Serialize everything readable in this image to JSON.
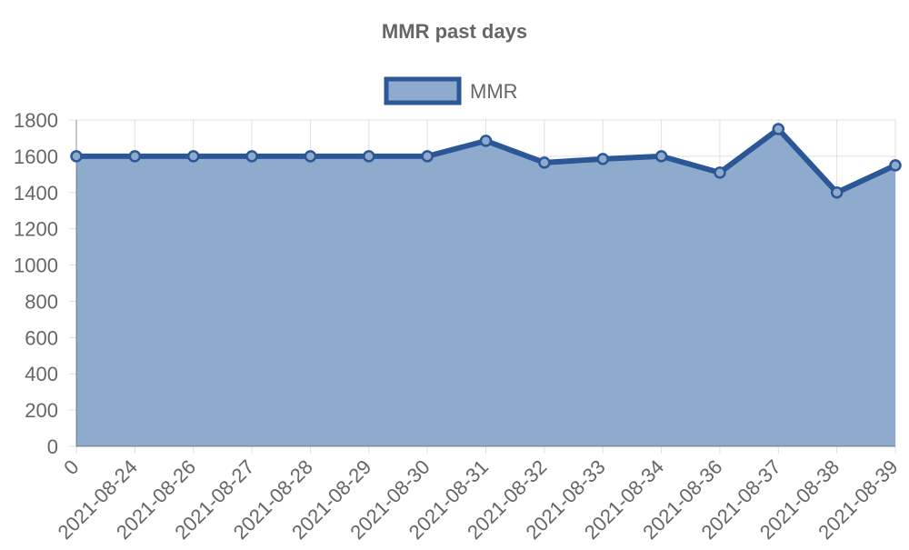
{
  "chart_data": {
    "type": "area",
    "title": "MMR past days",
    "legend": {
      "position": "top",
      "entries": [
        "MMR"
      ]
    },
    "categories": [
      "0",
      "2021-08-24",
      "2021-08-26",
      "2021-08-27",
      "2021-08-28",
      "2021-08-29",
      "2021-08-30",
      "2021-08-31",
      "2021-08-32",
      "2021-08-33",
      "2021-08-34",
      "2021-08-36",
      "2021-08-37",
      "2021-08-38",
      "2021-08-39"
    ],
    "series": [
      {
        "name": "MMR",
        "values": [
          1600,
          1600,
          1600,
          1600,
          1600,
          1600,
          1600,
          1685,
          1565,
          1585,
          1600,
          1510,
          1750,
          1400,
          1550
        ],
        "line_color": "#2b5797",
        "fill_color": "#8eabcd"
      }
    ],
    "yticks": [
      "0",
      "200",
      "400",
      "600",
      "800",
      "1000",
      "1200",
      "1400",
      "1600",
      "1800"
    ],
    "ylim": [
      0,
      1800
    ],
    "grid": true
  }
}
